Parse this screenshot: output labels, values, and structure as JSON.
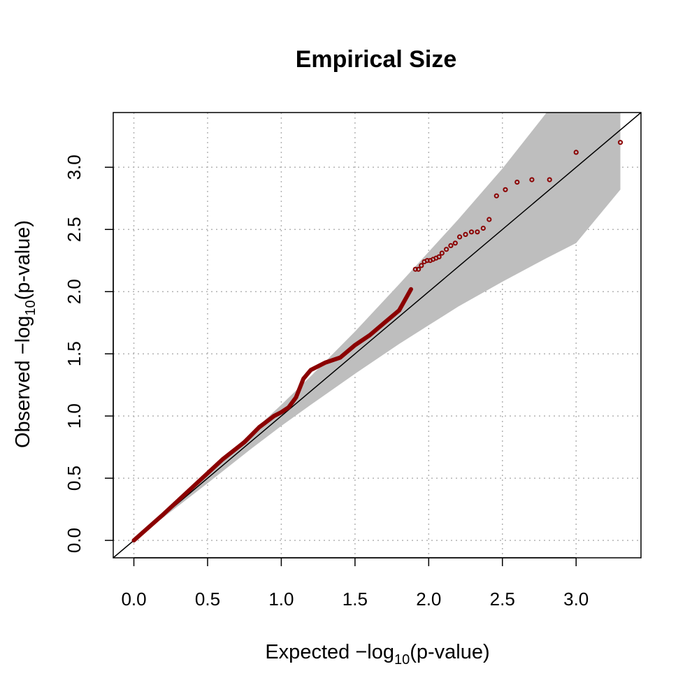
{
  "chart_data": {
    "type": "scatter",
    "title": "Empirical Size",
    "xlabel": {
      "pre": "Expected −log",
      "sub": "10",
      "post": "(p-value)"
    },
    "ylabel": {
      "pre": "Observed −log",
      "sub": "10",
      "post": "(p-value)"
    },
    "xlim": [
      -0.14,
      3.44
    ],
    "ylim": [
      -0.14,
      3.44
    ],
    "x_ticks": [
      "0.0",
      "0.5",
      "1.0",
      "1.5",
      "2.0",
      "2.5",
      "3.0"
    ],
    "y_ticks": [
      "0.0",
      "0.5",
      "1.0",
      "1.5",
      "2.0",
      "2.5",
      "3.0"
    ],
    "grid": true,
    "reference_line": {
      "slope": 1,
      "intercept": 0
    },
    "confidence_band": {
      "x": [
        0.0,
        0.5,
        0.8,
        1.0,
        1.2,
        1.5,
        1.8,
        2.0,
        2.2,
        2.5,
        2.8,
        3.0,
        3.3
      ],
      "lower": [
        0.0,
        0.46,
        0.74,
        0.92,
        1.09,
        1.34,
        1.58,
        1.73,
        1.88,
        2.08,
        2.27,
        2.39,
        2.82
      ],
      "upper": [
        0.0,
        0.54,
        0.87,
        1.09,
        1.32,
        1.68,
        2.06,
        2.32,
        2.58,
        2.99,
        3.44,
        3.44,
        3.44
      ]
    },
    "curve": {
      "x": [
        0.0,
        0.2,
        0.4,
        0.6,
        0.75,
        0.85,
        0.95,
        1.0,
        1.05,
        1.1,
        1.15,
        1.2,
        1.3,
        1.4,
        1.5,
        1.6,
        1.7,
        1.8,
        1.88
      ],
      "y": [
        0.0,
        0.21,
        0.43,
        0.65,
        0.79,
        0.91,
        1.0,
        1.03,
        1.07,
        1.15,
        1.3,
        1.37,
        1.43,
        1.47,
        1.57,
        1.65,
        1.75,
        1.85,
        2.02
      ]
    },
    "points": {
      "x": [
        1.91,
        1.93,
        1.95,
        1.97,
        1.99,
        2.01,
        2.03,
        2.05,
        2.07,
        2.09,
        2.12,
        2.15,
        2.18,
        2.21,
        2.25,
        2.29,
        2.33,
        2.37,
        2.41,
        2.46,
        2.52,
        2.6,
        2.7,
        2.82,
        3.0,
        3.3
      ],
      "y": [
        2.18,
        2.18,
        2.21,
        2.24,
        2.25,
        2.25,
        2.26,
        2.27,
        2.28,
        2.31,
        2.34,
        2.37,
        2.39,
        2.44,
        2.46,
        2.48,
        2.48,
        2.51,
        2.58,
        2.77,
        2.82,
        2.88,
        2.9,
        2.9,
        3.12,
        3.2
      ]
    },
    "colors": {
      "points": "#8b0000",
      "band": "#bebebe",
      "line": "#000000",
      "grid": "#b3b3b3"
    }
  }
}
